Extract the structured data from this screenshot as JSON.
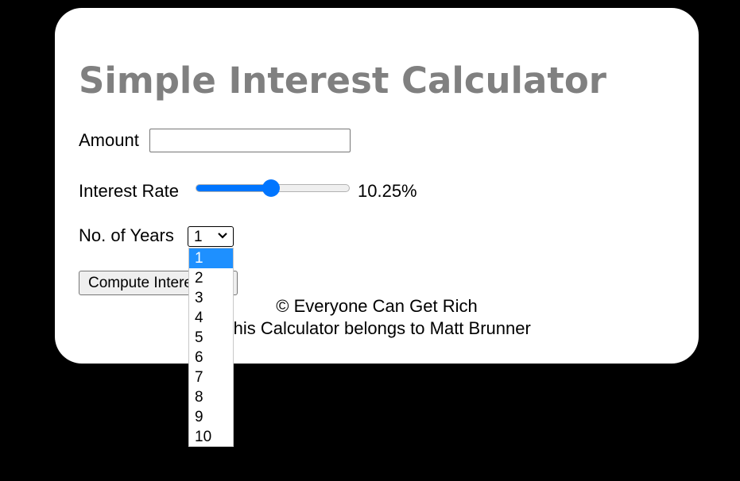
{
  "app": {
    "title": "Simple Interest Calculator"
  },
  "form": {
    "amount_label": "Amount",
    "amount_value": "",
    "amount_placeholder": "",
    "rate_label": "Interest Rate",
    "rate_value": 10.25,
    "rate_min": 1,
    "rate_max": 20,
    "rate_display": "10.25%",
    "years_label": "No. of Years",
    "years_selected": "1",
    "years_options": [
      "1",
      "2",
      "3",
      "4",
      "5",
      "6",
      "7",
      "8",
      "9",
      "10"
    ],
    "compute_label": "Compute Interest"
  },
  "footer": {
    "line1": "© Everyone Can Get Rich",
    "line2": "This Calculator belongs to Matt Brunner"
  },
  "colors": {
    "accent": "#0075ff",
    "selected_option": "#1e90ff",
    "title": "#808080"
  }
}
